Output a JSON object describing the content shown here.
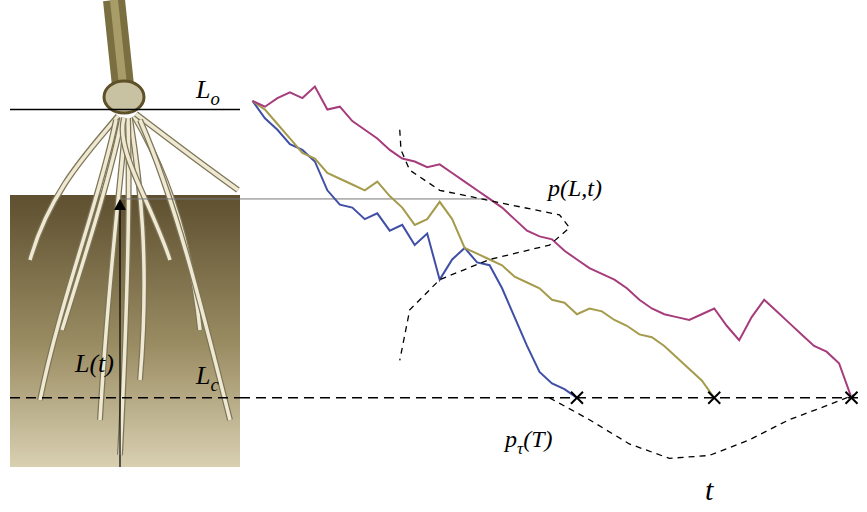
{
  "chart_data": {
    "type": "line",
    "tick_labels": false,
    "xlim": [
      0,
      100
    ],
    "ylim": [
      -24,
      112
    ],
    "xticks": [
      0,
      5,
      10,
      15,
      20,
      25,
      30,
      35,
      40,
      45,
      50,
      55,
      60,
      65,
      70,
      75,
      80,
      85,
      90,
      95,
      100
    ],
    "yticks": [
      -12.5,
      0,
      12.5,
      25,
      37.5,
      50,
      62.5,
      75,
      87.5,
      100
    ],
    "x_label": {
      "base": "t"
    },
    "levels": [
      {
        "label": {
          "base": "L",
          "sub": "o"
        },
        "value": 100,
        "line_style": "solid"
      },
      {
        "label": {
          "base": "L",
          "sub": "c"
        },
        "value": 0,
        "line_style": "dashed"
      },
      {
        "label": {
          "base": "L(t)"
        },
        "value": 69,
        "line_style": "solid",
        "x_end": 39.5
      }
    ],
    "series": [
      {
        "color": "#3f4fa6",
        "line_style": "solid",
        "x": [
          2,
          4,
          6,
          8,
          10,
          12,
          14,
          16,
          18,
          20,
          22,
          24,
          26,
          28,
          30,
          32,
          34,
          36,
          38,
          40,
          42,
          44,
          46,
          48,
          50,
          52,
          54
        ],
        "values": [
          103,
          97,
          93,
          88,
          86,
          82,
          72,
          67,
          66,
          62,
          64,
          58,
          60,
          53,
          57,
          41,
          48,
          52,
          47,
          46,
          38,
          28,
          18,
          9,
          5,
          3,
          0
        ]
      },
      {
        "color": "#a59b4c",
        "line_style": "solid",
        "x": [
          2,
          4,
          6,
          8,
          10,
          12,
          14,
          16,
          18,
          20,
          22,
          24,
          26,
          28,
          30,
          32,
          34,
          36,
          38,
          40,
          42,
          44,
          46,
          48,
          50,
          52,
          54,
          56,
          58,
          60,
          62,
          64,
          66,
          68,
          70,
          72,
          74,
          76
        ],
        "values": [
          103,
          100,
          95,
          90,
          85,
          83,
          78,
          76,
          74,
          72,
          75,
          70,
          66,
          60,
          62,
          68,
          62,
          52,
          50,
          48,
          46,
          42,
          40,
          38,
          34,
          33,
          29,
          31,
          30,
          27,
          25,
          22,
          21,
          18,
          14,
          10,
          6,
          0
        ]
      },
      {
        "color": "#a63c7c",
        "line_style": "solid",
        "x": [
          2,
          4,
          6,
          8,
          10,
          12,
          14,
          16,
          18,
          20,
          22,
          24,
          26,
          28,
          30,
          32,
          34,
          36,
          38,
          40,
          42,
          44,
          46,
          48,
          50,
          52,
          54,
          56,
          58,
          60,
          62,
          64,
          66,
          68,
          70,
          72,
          74,
          76,
          78,
          80,
          82,
          84,
          86,
          88,
          90,
          92,
          94,
          96,
          98
        ],
        "values": [
          103,
          101,
          104,
          106,
          104,
          108,
          100,
          101,
          96,
          93,
          90,
          86,
          83,
          82,
          80,
          81,
          78,
          75,
          72,
          69,
          66,
          62,
          58,
          56,
          55,
          51,
          48,
          45,
          43,
          41,
          38,
          34,
          31,
          29,
          28,
          27,
          29,
          31,
          25,
          20,
          28,
          34,
          30,
          26,
          22,
          18,
          16,
          12,
          0
        ]
      },
      {
        "label": {
          "base": "p(L,t)"
        },
        "color": "#000000",
        "line_style": "dashed",
        "x": [
          25.6,
          25.8,
          27.2,
          32,
          43.2,
          51.2,
          52.8,
          49.6,
          40,
          32,
          27.2,
          25.6
        ],
        "values": [
          93,
          86,
          79,
          72,
          67,
          63.5,
          59,
          53,
          48,
          41,
          30.5,
          13
        ]
      },
      {
        "label": {
          "base": "p",
          "sub": "τ",
          "rest": "(T)"
        },
        "color": "#000000",
        "line_style": "dashed",
        "x": [
          49.6,
          56,
          62.4,
          68.8,
          75.2,
          81.6,
          88,
          94.4,
          98.4
        ],
        "values": [
          0,
          -7.6,
          -16,
          -21,
          -20,
          -14.6,
          -7.6,
          -2.4,
          1
        ]
      }
    ]
  }
}
